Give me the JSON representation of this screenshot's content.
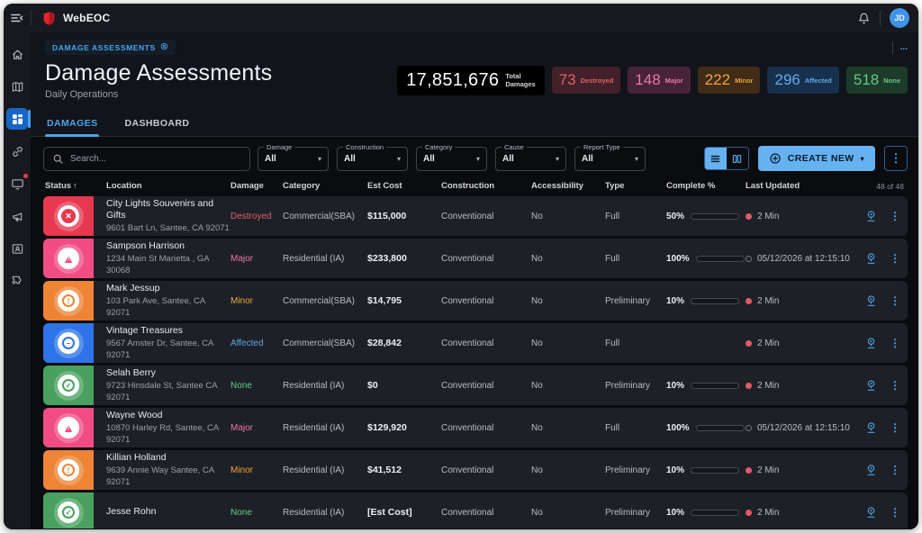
{
  "topbar": {
    "app_name": "WebEOC",
    "user_initials": "JD"
  },
  "sidebar": {
    "items": [
      "home",
      "map",
      "boards",
      "link",
      "messages",
      "megaphone",
      "contacts",
      "plugins"
    ],
    "active_item": "boards",
    "notification_item": "messages"
  },
  "breadcrumb": {
    "label": "DAMAGE ASSESSMENTS",
    "overflow": "..."
  },
  "header": {
    "title": "Damage Assessments",
    "subtitle": "Daily Operations"
  },
  "stats": {
    "total": {
      "value": "17,851,676",
      "label_line1": "Total",
      "label_line2": "Damages"
    },
    "chips": [
      {
        "value": "73",
        "label": "Destroyed",
        "fg": "#e25f68",
        "bg": "#42212a"
      },
      {
        "value": "148",
        "label": "Major",
        "fg": "#ea78a8",
        "bg": "#472339"
      },
      {
        "value": "222",
        "label": "Minor",
        "fg": "#eda53c",
        "bg": "#402c17"
      },
      {
        "value": "296",
        "label": "Affected",
        "fg": "#62aae8",
        "bg": "#17304e"
      },
      {
        "value": "518",
        "label": "None",
        "fg": "#67c887",
        "bg": "#1c3b2a"
      }
    ]
  },
  "tabs": [
    {
      "label": "DAMAGES",
      "active": true
    },
    {
      "label": "DASHBOARD",
      "active": false
    }
  ],
  "filters": {
    "search_placeholder": "Search...",
    "selects": [
      {
        "label": "Damage",
        "value": "All"
      },
      {
        "label": "Construction",
        "value": "All"
      },
      {
        "label": "Category",
        "value": "All"
      },
      {
        "label": "Cause",
        "value": "All"
      },
      {
        "label": "Report Type",
        "value": "All"
      }
    ],
    "create_new_label": "CREATE NEW"
  },
  "status_colors": {
    "destroyed": "#e63950",
    "major": "#f14d84",
    "minor": "#ee8435",
    "affected": "#2e74e8",
    "none": "#4aa15f"
  },
  "damage_colors": {
    "Destroyed": "#e25f68",
    "Major": "#ea77a2",
    "Minor": "#eca53f",
    "Affected": "#5fa9e8",
    "None": "#69c988"
  },
  "table": {
    "columns": [
      "Status",
      "Location",
      "Damage",
      "Category",
      "Est Cost",
      "Construction",
      "Accessibility",
      "Type",
      "Complete %",
      "Last Updated"
    ],
    "sorted_column": "Status",
    "sort_arrow": "↑",
    "count_label": "48 of 48",
    "rows": [
      {
        "status": "destroyed",
        "name": "City Lights Souvenirs and Gifts",
        "address": "9601 Bart Ln, Santee, CA 92071",
        "damage": "Destroyed",
        "category": "Commercial(SBA)",
        "est_cost": "$115,000",
        "construction": "Conventional",
        "accessibility": "No",
        "type": "Full",
        "complete": "50%",
        "progress": 50,
        "bar_color": "#c8803e",
        "updated": "2 Min",
        "updated_style": "recent"
      },
      {
        "status": "major",
        "name": "Sampson Harrison",
        "address": "1234 Main St Marietta , GA 30068",
        "damage": "Major",
        "category": "Residential (IA)",
        "est_cost": "$233,800",
        "construction": "Conventional",
        "accessibility": "No",
        "type": "Full",
        "complete": "100%",
        "progress": 100,
        "bar_color": "#5faa6d",
        "updated": "05/12/2026 at 12:15:10",
        "updated_style": "date"
      },
      {
        "status": "minor",
        "name": "Mark Jessup",
        "address": "103 Park Ave, Santee, CA 92071",
        "damage": "Minor",
        "category": "Commercial(SBA)",
        "est_cost": "$14,795",
        "construction": "Conventional",
        "accessibility": "No",
        "type": "Preliminary",
        "complete": "10%",
        "progress": 10,
        "bar_color": "#cf5c3d",
        "updated": "2 Min",
        "updated_style": "recent"
      },
      {
        "status": "affected",
        "name": "Vintage Treasures",
        "address": "9567 Amster Dr, Santee, CA 92071",
        "damage": "Affected",
        "category": "Commercial(SBA)",
        "est_cost": "$28,842",
        "construction": "Conventional",
        "accessibility": "No",
        "type": "Full",
        "complete": "",
        "progress": null,
        "bar_color": "",
        "updated": "2 Min",
        "updated_style": "recent"
      },
      {
        "status": "none",
        "name": "Selah Berry",
        "address": "9723 Hinsdale St, Santee CA 92071",
        "damage": "None",
        "category": "Residential (IA)",
        "est_cost": "$0",
        "construction": "Conventional",
        "accessibility": "No",
        "type": "Preliminary",
        "complete": "10%",
        "progress": 10,
        "bar_color": "#cf5c3d",
        "updated": "2 Min",
        "updated_style": "recent"
      },
      {
        "status": "major",
        "name": "Wayne Wood",
        "address": "10870 Harley Rd, Santee, CA 92071",
        "damage": "Major",
        "category": "Residential (IA)",
        "est_cost": "$129,920",
        "construction": "Conventional",
        "accessibility": "No",
        "type": "Full",
        "complete": "100%",
        "progress": 100,
        "bar_color": "#5faa6d",
        "updated": "05/12/2026 at 12:15:10",
        "updated_style": "date"
      },
      {
        "status": "minor",
        "name": "Killian Holland",
        "address": "9639 Annie Way Santee, CA 92071",
        "damage": "Minor",
        "category": "Residential (IA)",
        "est_cost": "$41,512",
        "construction": "Conventional",
        "accessibility": "No",
        "type": "Preliminary",
        "complete": "10%",
        "progress": 10,
        "bar_color": "#cf5c3d",
        "updated": "2 Min",
        "updated_style": "recent"
      },
      {
        "status": "none",
        "name": "Jesse Rohn",
        "address": "",
        "damage": "None",
        "category": "Residential (IA)",
        "est_cost": "[Est Cost]",
        "construction": "Conventional",
        "accessibility": "No",
        "type": "Preliminary",
        "complete": "10%",
        "progress": 10,
        "bar_color": "#cf5c3d",
        "updated": "2 Min",
        "updated_style": "recent"
      }
    ]
  }
}
